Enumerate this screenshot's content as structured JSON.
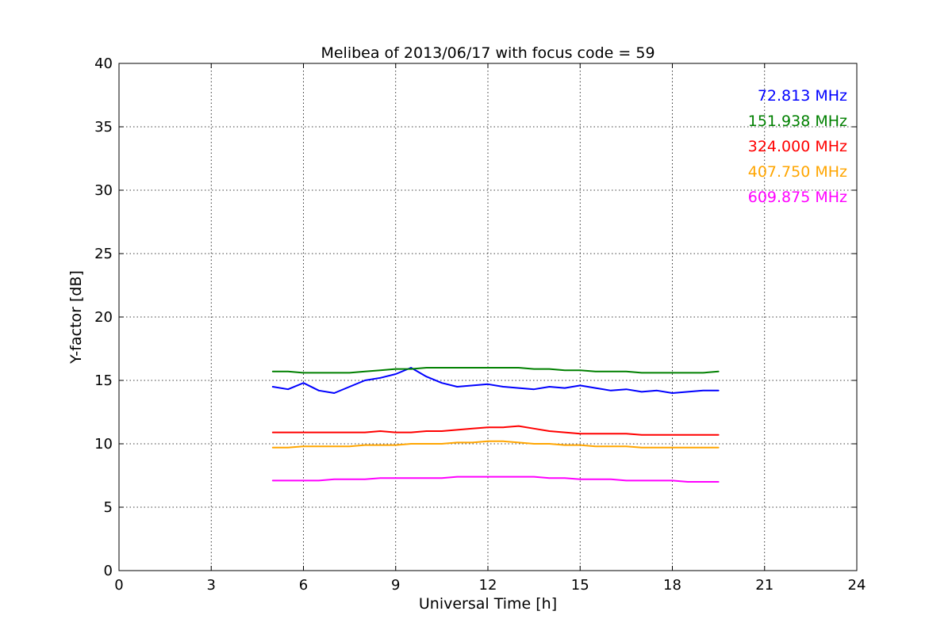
{
  "chart_data": {
    "type": "line",
    "title": "Melibea of 2013/06/17 with focus code = 59",
    "xlabel": "Universal Time [h]",
    "ylabel": "Y-factor [dB]",
    "xlim": [
      0,
      24
    ],
    "ylim": [
      0,
      40
    ],
    "xticks": [
      0,
      3,
      6,
      9,
      12,
      15,
      18,
      21,
      24
    ],
    "yticks": [
      0,
      5,
      10,
      15,
      20,
      25,
      30,
      35,
      40
    ],
    "grid": true,
    "legend_position": "top-right",
    "series": [
      {
        "name": "72.813 MHz",
        "color": "#0000ff",
        "x": [
          5.0,
          5.5,
          6.0,
          6.5,
          7.0,
          7.5,
          8.0,
          8.5,
          9.0,
          9.5,
          10.0,
          10.5,
          11.0,
          11.5,
          12.0,
          12.5,
          13.0,
          13.5,
          14.0,
          14.5,
          15.0,
          15.5,
          16.0,
          16.5,
          17.0,
          17.5,
          18.0,
          18.5,
          19.0,
          19.5
        ],
        "y": [
          14.5,
          14.3,
          14.8,
          14.2,
          14.0,
          14.5,
          15.0,
          15.2,
          15.5,
          16.0,
          15.3,
          14.8,
          14.5,
          14.6,
          14.7,
          14.5,
          14.4,
          14.3,
          14.5,
          14.4,
          14.6,
          14.4,
          14.2,
          14.3,
          14.1,
          14.2,
          14.0,
          14.1,
          14.2,
          14.2
        ]
      },
      {
        "name": "151.938 MHz",
        "color": "#008000",
        "x": [
          5.0,
          5.5,
          6.0,
          6.5,
          7.0,
          7.5,
          8.0,
          8.5,
          9.0,
          9.5,
          10.0,
          10.5,
          11.0,
          11.5,
          12.0,
          12.5,
          13.0,
          13.5,
          14.0,
          14.5,
          15.0,
          15.5,
          16.0,
          16.5,
          17.0,
          17.5,
          18.0,
          18.5,
          19.0,
          19.5
        ],
        "y": [
          15.7,
          15.7,
          15.6,
          15.6,
          15.6,
          15.6,
          15.7,
          15.8,
          15.9,
          15.9,
          16.0,
          16.0,
          16.0,
          16.0,
          16.0,
          16.0,
          16.0,
          15.9,
          15.9,
          15.8,
          15.8,
          15.7,
          15.7,
          15.7,
          15.6,
          15.6,
          15.6,
          15.6,
          15.6,
          15.7
        ]
      },
      {
        "name": "324.000 MHz",
        "color": "#ff0000",
        "x": [
          5.0,
          5.5,
          6.0,
          6.5,
          7.0,
          7.5,
          8.0,
          8.5,
          9.0,
          9.5,
          10.0,
          10.5,
          11.0,
          11.5,
          12.0,
          12.5,
          13.0,
          13.5,
          14.0,
          14.5,
          15.0,
          15.5,
          16.0,
          16.5,
          17.0,
          17.5,
          18.0,
          18.5,
          19.0,
          19.5
        ],
        "y": [
          10.9,
          10.9,
          10.9,
          10.9,
          10.9,
          10.9,
          10.9,
          11.0,
          10.9,
          10.9,
          11.0,
          11.0,
          11.1,
          11.2,
          11.3,
          11.3,
          11.4,
          11.2,
          11.0,
          10.9,
          10.8,
          10.8,
          10.8,
          10.8,
          10.7,
          10.7,
          10.7,
          10.7,
          10.7,
          10.7
        ]
      },
      {
        "name": "407.750 MHz",
        "color": "#ffa500",
        "x": [
          5.0,
          5.5,
          6.0,
          6.5,
          7.0,
          7.5,
          8.0,
          8.5,
          9.0,
          9.5,
          10.0,
          10.5,
          11.0,
          11.5,
          12.0,
          12.5,
          13.0,
          13.5,
          14.0,
          14.5,
          15.0,
          15.5,
          16.0,
          16.5,
          17.0,
          17.5,
          18.0,
          18.5,
          19.0,
          19.5
        ],
        "y": [
          9.7,
          9.7,
          9.8,
          9.8,
          9.8,
          9.8,
          9.9,
          9.9,
          9.9,
          10.0,
          10.0,
          10.0,
          10.1,
          10.1,
          10.2,
          10.2,
          10.1,
          10.0,
          10.0,
          9.9,
          9.9,
          9.8,
          9.8,
          9.8,
          9.7,
          9.7,
          9.7,
          9.7,
          9.7,
          9.7
        ]
      },
      {
        "name": "609.875 MHz",
        "color": "#ff00ff",
        "x": [
          5.0,
          5.5,
          6.0,
          6.5,
          7.0,
          7.5,
          8.0,
          8.5,
          9.0,
          9.5,
          10.0,
          10.5,
          11.0,
          11.5,
          12.0,
          12.5,
          13.0,
          13.5,
          14.0,
          14.5,
          15.0,
          15.5,
          16.0,
          16.5,
          17.0,
          17.5,
          18.0,
          18.5,
          19.0,
          19.5
        ],
        "y": [
          7.1,
          7.1,
          7.1,
          7.1,
          7.2,
          7.2,
          7.2,
          7.3,
          7.3,
          7.3,
          7.3,
          7.3,
          7.4,
          7.4,
          7.4,
          7.4,
          7.4,
          7.4,
          7.3,
          7.3,
          7.2,
          7.2,
          7.2,
          7.1,
          7.1,
          7.1,
          7.1,
          7.0,
          7.0,
          7.0
        ]
      }
    ]
  }
}
